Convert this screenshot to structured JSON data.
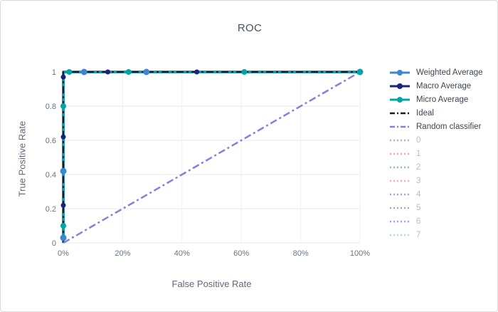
{
  "chart_data": {
    "type": "line",
    "title": "ROC",
    "xlabel": "False Positive Rate",
    "ylabel": "True Positive Rate",
    "xlim": [
      0,
      1
    ],
    "ylim": [
      0,
      1
    ],
    "grid": true,
    "legend_position": "right",
    "x_tick_vals": [
      0,
      0.2,
      0.4,
      0.6,
      0.8,
      1
    ],
    "x_tick_labels": [
      "0%",
      "20%",
      "40%",
      "60%",
      "80%",
      "100%"
    ],
    "y_tick_vals": [
      0,
      0.2,
      0.4,
      0.6,
      0.8,
      1
    ],
    "y_tick_labels": [
      "0",
      "0.2",
      "0.4",
      "0.6",
      "0.8",
      "1"
    ],
    "series": [
      {
        "name": "Weighted Average",
        "color": "#3c86d2",
        "dash": "solid",
        "width": 4,
        "marker_size": 4.5,
        "legend_marker": true,
        "muted": false,
        "hidden": false,
        "points": [
          [
            0,
            0
          ],
          [
            0,
            1
          ],
          [
            1,
            1
          ]
        ],
        "markers": [
          [
            0,
            0.03
          ],
          [
            0,
            0.42
          ],
          [
            0.07,
            1
          ],
          [
            0.28,
            1
          ],
          [
            1,
            1
          ]
        ]
      },
      {
        "name": "Macro Average",
        "color": "#1a237e",
        "dash": "solid",
        "width": 2,
        "marker_size": 3.5,
        "legend_marker": true,
        "muted": false,
        "hidden": false,
        "points": [
          [
            0,
            0
          ],
          [
            0,
            1
          ],
          [
            1,
            1
          ]
        ],
        "markers": [
          [
            0,
            0.22
          ],
          [
            0,
            0.62
          ],
          [
            0,
            0.97
          ],
          [
            0.15,
            1
          ],
          [
            0.45,
            1
          ],
          [
            1,
            1
          ]
        ]
      },
      {
        "name": "Micro Average",
        "color": "#00a6a6",
        "dash": "solid",
        "width": 2.5,
        "marker_size": 4,
        "legend_marker": true,
        "muted": false,
        "hidden": false,
        "points": [
          [
            0,
            0
          ],
          [
            0,
            1
          ],
          [
            1,
            1
          ]
        ],
        "markers": [
          [
            0,
            0.1
          ],
          [
            0,
            0.8
          ],
          [
            0.02,
            1
          ],
          [
            0.22,
            1
          ],
          [
            0.61,
            1
          ],
          [
            1,
            1
          ]
        ]
      },
      {
        "name": "Ideal",
        "color": "#1b1b1b",
        "dash": "dashdot",
        "width": 2,
        "marker_size": 0,
        "legend_marker": false,
        "muted": false,
        "hidden": false,
        "points": [
          [
            0,
            0
          ],
          [
            0,
            1
          ],
          [
            1,
            1
          ]
        ],
        "markers": []
      },
      {
        "name": "Random classifier",
        "color": "#8a7ce0",
        "dash": "dashdot",
        "width": 2.5,
        "marker_size": 0,
        "legend_marker": false,
        "muted": false,
        "hidden": false,
        "points": [
          [
            0,
            0
          ],
          [
            1,
            1
          ]
        ],
        "markers": []
      },
      {
        "name": "0",
        "color": "#c9a0dc",
        "dash": "dot",
        "width": 2,
        "marker_size": 0,
        "legend_marker": false,
        "muted": true,
        "hidden": true,
        "points": [],
        "markers": []
      },
      {
        "name": "1",
        "color": "#f0a3c8",
        "dash": "dot",
        "width": 2,
        "marker_size": 0,
        "legend_marker": false,
        "muted": true,
        "hidden": true,
        "points": [],
        "markers": []
      },
      {
        "name": "2",
        "color": "#8fbf9f",
        "dash": "dot",
        "width": 2,
        "marker_size": 0,
        "legend_marker": false,
        "muted": true,
        "hidden": true,
        "points": [],
        "markers": []
      },
      {
        "name": "3",
        "color": "#f2b0ac",
        "dash": "dot",
        "width": 2,
        "marker_size": 0,
        "legend_marker": false,
        "muted": true,
        "hidden": true,
        "points": [],
        "markers": []
      },
      {
        "name": "4",
        "color": "#af9ad2",
        "dash": "dot",
        "width": 2,
        "marker_size": 0,
        "legend_marker": false,
        "muted": true,
        "hidden": true,
        "points": [],
        "markers": []
      },
      {
        "name": "5",
        "color": "#b5a79e",
        "dash": "dot",
        "width": 2,
        "marker_size": 0,
        "legend_marker": false,
        "muted": true,
        "hidden": true,
        "points": [],
        "markers": []
      },
      {
        "name": "6",
        "color": "#8ea9e2",
        "dash": "dot",
        "width": 2,
        "marker_size": 0,
        "legend_marker": false,
        "muted": true,
        "hidden": true,
        "points": [],
        "markers": []
      },
      {
        "name": "7",
        "color": "#9fdbe8",
        "dash": "dot",
        "width": 2,
        "marker_size": 0,
        "legend_marker": false,
        "muted": true,
        "hidden": true,
        "points": [],
        "markers": []
      }
    ]
  }
}
